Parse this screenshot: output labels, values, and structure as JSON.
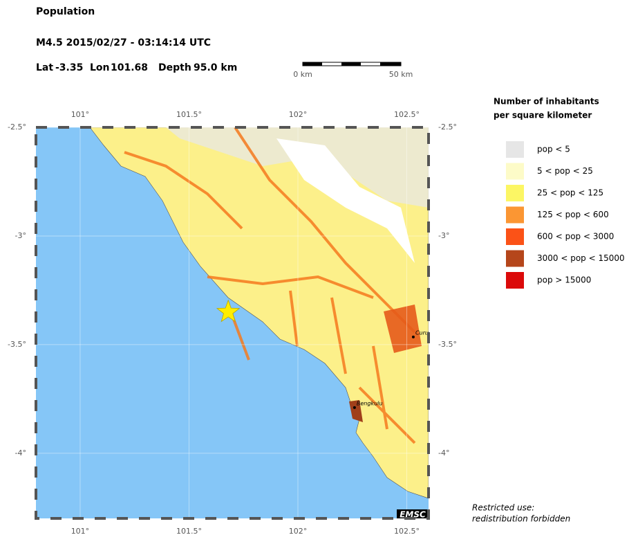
{
  "header": {
    "title": "Population",
    "event": "M4.5  2015/02/27 - 03:14:14 UTC"
  },
  "event": {
    "lat_label": "Lat",
    "lat": -3.35,
    "lon_label": "Lon",
    "lon": 101.68,
    "depth_label": "Depth",
    "depth": "95.0 km"
  },
  "scale_bar": {
    "start": "0 km",
    "end": "50 km"
  },
  "map": {
    "xlim": [
      100.797,
      102.6
    ],
    "ylim": [
      -4.3,
      -2.5
    ],
    "xticks": [
      {
        "value": 101,
        "label": "101°"
      },
      {
        "value": 101.5,
        "label": "101.5°"
      },
      {
        "value": 102,
        "label": "102°"
      },
      {
        "value": 102.5,
        "label": "102.5°"
      }
    ],
    "yticks": [
      {
        "value": -2.5,
        "label": "-2.5°"
      },
      {
        "value": -3,
        "label": "-3°"
      },
      {
        "value": -3.5,
        "label": "-3.5°"
      },
      {
        "value": -4,
        "label": "-4°"
      }
    ],
    "cities": [
      {
        "name": "Bengkulu",
        "lon": 102.26,
        "lat": -3.79
      },
      {
        "name": "Curup",
        "lon": 102.53,
        "lat": -3.465
      }
    ],
    "logo": "EMSC"
  },
  "legend": {
    "title": [
      "Number of inhabitants",
      "per square kilometer"
    ],
    "items": [
      {
        "label": "pop < 5",
        "color": "#e6e6e6"
      },
      {
        "label": "5 < pop < 25",
        "color": "#fdfbc8"
      },
      {
        "label": "25 < pop < 125",
        "color": "#fcf664"
      },
      {
        "label": "125 < pop < 600",
        "color": "#fb9633"
      },
      {
        "label": "600 < pop < 3000",
        "color": "#fb5217"
      },
      {
        "label": "3000 < pop < 15000",
        "color": "#b5461b"
      },
      {
        "label": "pop > 15000",
        "color": "#db0a0a"
      }
    ]
  },
  "note": [
    "Restricted use:",
    "redistribution forbidden"
  ]
}
